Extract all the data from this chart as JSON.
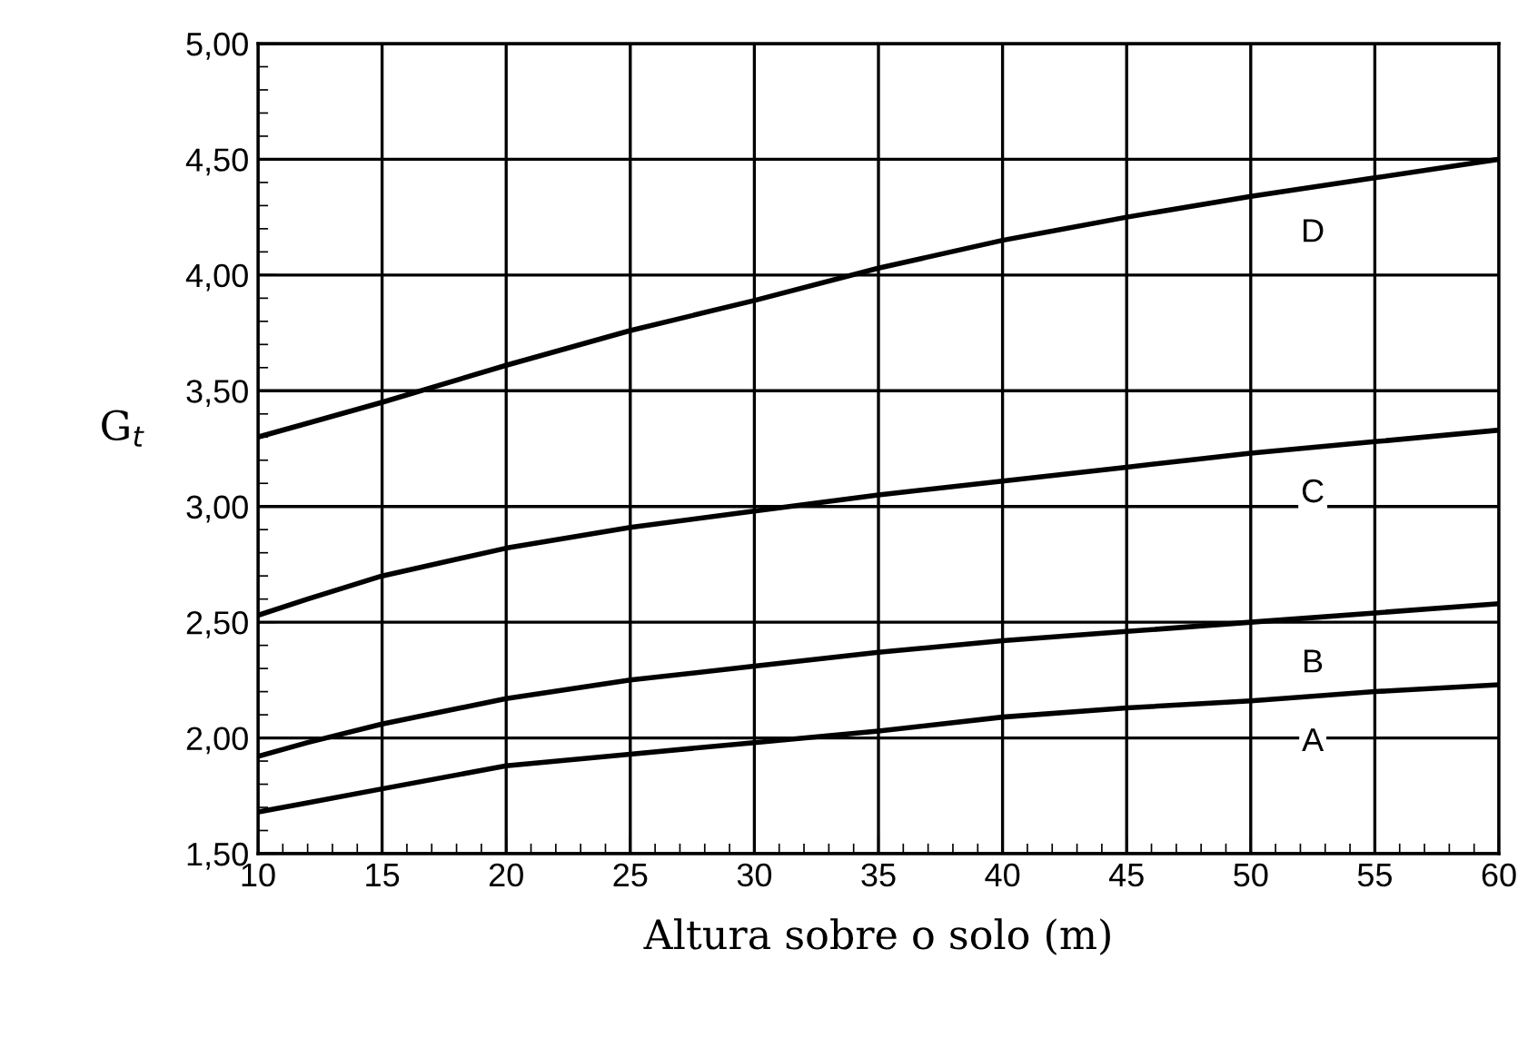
{
  "chart_data": {
    "type": "line",
    "xlabel": "Altura sobre o solo (m)",
    "ylabel": "G$_{t}$",
    "x": [
      10,
      12,
      15,
      20,
      25,
      30,
      35,
      40,
      45,
      50,
      55,
      60
    ],
    "series": [
      {
        "name": "A",
        "color": "#000000",
        "values": [
          1.68,
          1.72,
          1.78,
          1.88,
          1.93,
          1.98,
          2.03,
          2.09,
          2.13,
          2.16,
          2.2,
          2.23
        ]
      },
      {
        "name": "B",
        "color": "#000000",
        "values": [
          1.92,
          1.98,
          2.06,
          2.17,
          2.25,
          2.31,
          2.37,
          2.42,
          2.46,
          2.5,
          2.54,
          2.58
        ]
      },
      {
        "name": "C",
        "color": "#000000",
        "values": [
          2.53,
          2.6,
          2.7,
          2.82,
          2.91,
          2.98,
          3.05,
          3.11,
          3.17,
          3.23,
          3.28,
          3.33
        ]
      },
      {
        "name": "D",
        "color": "#000000",
        "values": [
          3.3,
          3.36,
          3.45,
          3.61,
          3.76,
          3.89,
          4.03,
          4.15,
          4.25,
          4.34,
          4.42,
          4.5
        ]
      }
    ],
    "xlim": [
      10,
      60
    ],
    "xticks": [
      10,
      15,
      20,
      25,
      30,
      35,
      40,
      45,
      50,
      55,
      60
    ],
    "ylim": [
      1.5,
      5.0
    ],
    "yticks": [
      {
        "value": 1.5,
        "label": "1,50"
      },
      {
        "value": 2.0,
        "label": "2,00"
      },
      {
        "value": 2.5,
        "label": "2,50"
      },
      {
        "value": 3.0,
        "label": "3,00"
      },
      {
        "value": 3.5,
        "label": "3,50"
      },
      {
        "value": 4.0,
        "label": "4,00"
      },
      {
        "value": 4.5,
        "label": "4,50"
      },
      {
        "value": 5.0,
        "label": "5,00"
      }
    ],
    "grid": true,
    "legend": false,
    "marker": "none",
    "line_style": "solid"
  }
}
